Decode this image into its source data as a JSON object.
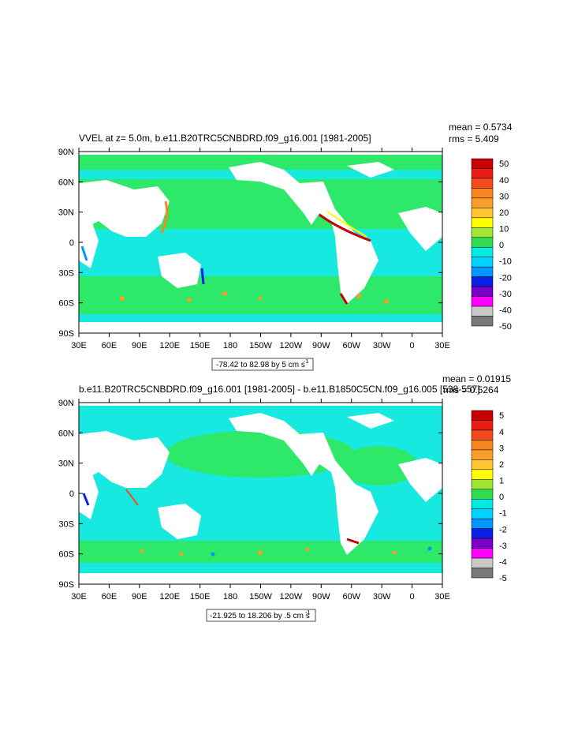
{
  "colors": {
    "land": "#ffffff",
    "ocean_bg": "#2ee86a",
    "ocean_cyan": "#17e8e0",
    "frame": "#000000"
  },
  "colorbar_colors": [
    "#c80000",
    "#e81e14",
    "#f54a1e",
    "#f7861e",
    "#fa9e28",
    "#ffc832",
    "#ffff00",
    "#a0e632",
    "#32dc50",
    "#00ebe1",
    "#00d2ff",
    "#0096ff",
    "#0a1ee6",
    "#7800c8",
    "#ff00ff",
    "#c8c8c8",
    "#787878"
  ],
  "chart_data": [
    {
      "type": "map",
      "title": "VVEL at z=   5.0m, b.e11.B20TRC5CNBDRD.f09_g16.001 [1981-2005]",
      "stats": {
        "mean": "mean = 0.5734",
        "rms": "rms = 5.409"
      },
      "xticks": [
        "30E",
        "60E",
        "90E",
        "120E",
        "150E",
        "180",
        "150W",
        "120W",
        "90W",
        "60W",
        "30W",
        "0",
        "30E"
      ],
      "yticks": [
        "90N",
        "60N",
        "30N",
        "0",
        "30S",
        "60S",
        "90S"
      ],
      "colorbar_labels": [
        "50",
        "40",
        "30",
        "20",
        "10",
        "0",
        "-10",
        "-20",
        "-30",
        "-40",
        "-50"
      ],
      "range_note": "-78.42 to 82.98 by 5 cm s",
      "range_sup": "-1"
    },
    {
      "type": "map",
      "title": "b.e11.B20TRC5CNBDRD.f09_g16.001 [1981-2005] - b.e11.B1850C5CN.f09_g16.005 [538-557]",
      "stats": {
        "mean": "mean = 0.01915",
        "rms": "rms = 0.5264"
      },
      "xticks": [
        "30E",
        "60E",
        "90E",
        "120E",
        "150E",
        "180",
        "150W",
        "120W",
        "90W",
        "60W",
        "30W",
        "0",
        "30E"
      ],
      "yticks": [
        "90N",
        "60N",
        "30N",
        "0",
        "30S",
        "60S",
        "90S"
      ],
      "colorbar_labels": [
        "5",
        "4",
        "3",
        "2",
        "1",
        "0",
        "-1",
        "-2",
        "-3",
        "-4",
        "-5"
      ],
      "range_note": "-21.925 to 18.206 by .5 cm s",
      "range_sup": "-1"
    }
  ]
}
